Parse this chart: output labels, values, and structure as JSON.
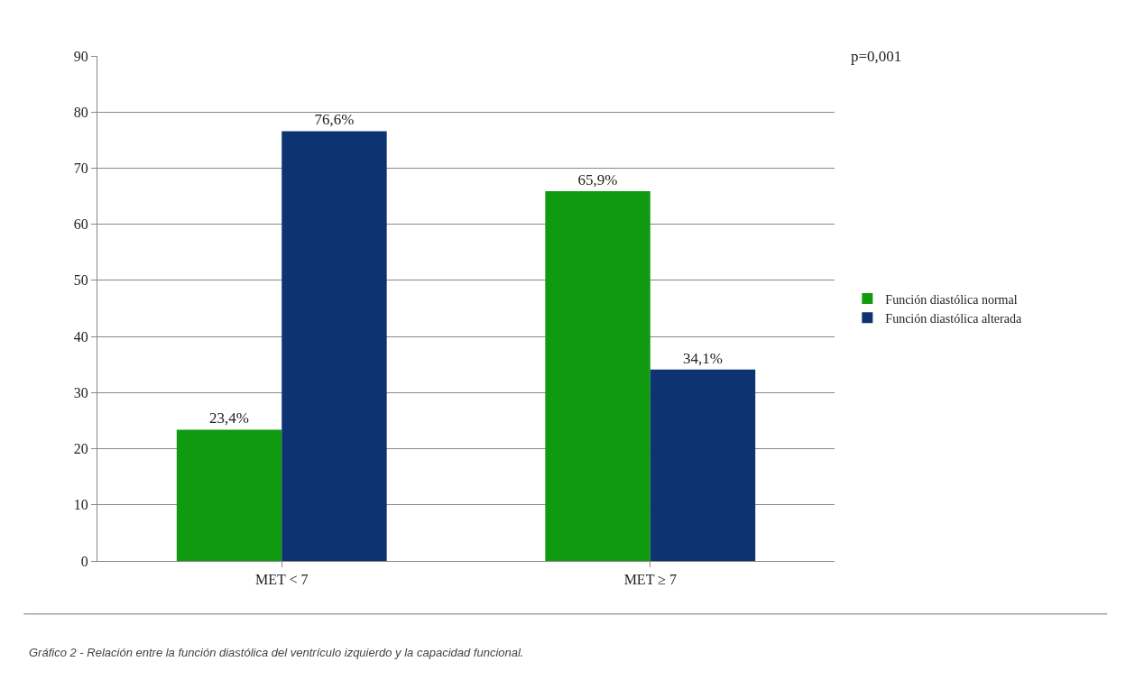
{
  "chart_data": {
    "type": "bar",
    "categories": [
      "MET < 7",
      "MET ≥ 7"
    ],
    "series": [
      {
        "name": "Función diastólica normal",
        "color": "#0f9a0f",
        "values": [
          23.4,
          65.9
        ],
        "value_labels": [
          "23,4%",
          "65,9%"
        ]
      },
      {
        "name": "Función diastólica alterada",
        "color": "#0e3372",
        "values": [
          76.6,
          34.1
        ],
        "value_labels": [
          "76,6%",
          "34,1%"
        ]
      }
    ],
    "ylim": [
      0,
      90
    ],
    "yticks": [
      0,
      10,
      20,
      30,
      40,
      50,
      60,
      70,
      80,
      90
    ],
    "grid": "y",
    "legend": "right",
    "annotations": [
      "p=0,001",
      "Gráfico 2 - Relación entre la función diastólica del ventrículo izquierdo y la capacidad funcional."
    ]
  }
}
